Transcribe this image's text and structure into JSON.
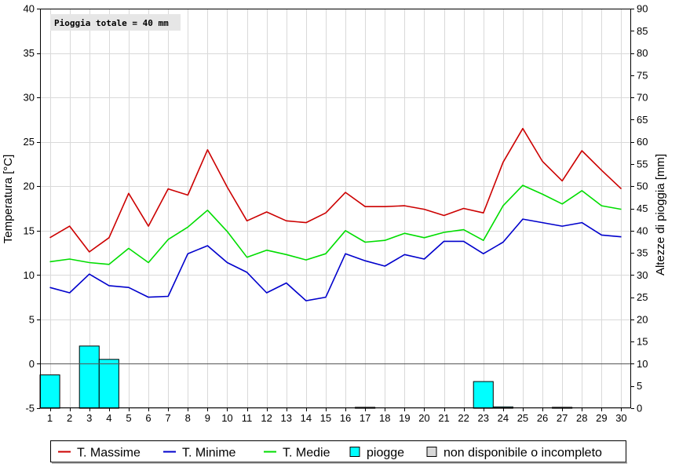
{
  "chart_data": {
    "type": "line",
    "annotation": "Pioggia totale = 40 mm",
    "x": [
      1,
      2,
      3,
      4,
      5,
      6,
      7,
      8,
      9,
      10,
      11,
      12,
      13,
      14,
      15,
      16,
      17,
      18,
      19,
      20,
      21,
      22,
      23,
      24,
      25,
      26,
      27,
      28,
      29,
      30
    ],
    "y_left": {
      "label": "Temperatura [°C]",
      "range": [
        -5,
        40
      ],
      "ticks": [
        -5,
        0,
        5,
        10,
        15,
        20,
        25,
        30,
        35,
        40
      ]
    },
    "y_right": {
      "label": "Altezze di pioggia [mm]",
      "range": [
        0,
        90
      ],
      "ticks": [
        0,
        5,
        10,
        15,
        20,
        25,
        30,
        35,
        40,
        45,
        50,
        55,
        60,
        65,
        70,
        75,
        80,
        85,
        90
      ]
    },
    "grid": true,
    "series": [
      {
        "name": "T. Massime",
        "color": "#cc0000",
        "axis": "left",
        "values": [
          14.2,
          15.5,
          12.6,
          14.2,
          19.2,
          15.5,
          19.7,
          19.0,
          24.1,
          19.9,
          16.1,
          17.1,
          16.1,
          15.9,
          17.0,
          19.3,
          17.7,
          17.7,
          17.8,
          17.4,
          16.7,
          17.5,
          17.0,
          22.7,
          26.5,
          22.8,
          20.6,
          24.0,
          21.8,
          19.7
        ]
      },
      {
        "name": "T. Minime",
        "color": "#0000cc",
        "axis": "left",
        "values": [
          8.6,
          8.0,
          10.1,
          8.8,
          8.6,
          7.5,
          7.6,
          12.4,
          13.3,
          11.4,
          10.3,
          8.0,
          9.1,
          7.1,
          7.5,
          12.4,
          11.6,
          11.0,
          12.3,
          11.8,
          13.8,
          13.8,
          12.4,
          13.7,
          16.3,
          15.9,
          15.5,
          15.9,
          14.5,
          14.3
        ]
      },
      {
        "name": "T. Medie",
        "color": "#00dd00",
        "axis": "left",
        "values": [
          11.5,
          11.8,
          11.4,
          11.2,
          13.0,
          11.4,
          14.0,
          15.4,
          17.3,
          14.9,
          12.0,
          12.8,
          12.3,
          11.7,
          12.4,
          15.0,
          13.7,
          13.9,
          14.7,
          14.2,
          14.8,
          15.1,
          13.9,
          17.8,
          20.1,
          19.1,
          18.0,
          19.5,
          17.8,
          17.4
        ]
      },
      {
        "name": "piogge",
        "color": "#00ffff",
        "axis": "right",
        "kind": "bar",
        "values": [
          7.5,
          0,
          14,
          11,
          0,
          0,
          0,
          0,
          0,
          0,
          0,
          0,
          0,
          0,
          0,
          0,
          0.2,
          0,
          0,
          0,
          0,
          0,
          6,
          0.3,
          0,
          0,
          0.2,
          0,
          0,
          0
        ]
      }
    ],
    "legend": {
      "placement": "bottom-center",
      "items": [
        {
          "label": "T. Massime",
          "color": "#cc0000",
          "symbol": "line"
        },
        {
          "label": "T. Minime",
          "color": "#0000cc",
          "symbol": "line"
        },
        {
          "label": "T. Medie",
          "color": "#00dd00",
          "symbol": "line"
        },
        {
          "label": "piogge",
          "color": "#00ffff",
          "symbol": "box"
        },
        {
          "label": "non disponibile o incompleto",
          "color": "#d8d8d8",
          "symbol": "box"
        }
      ]
    }
  }
}
